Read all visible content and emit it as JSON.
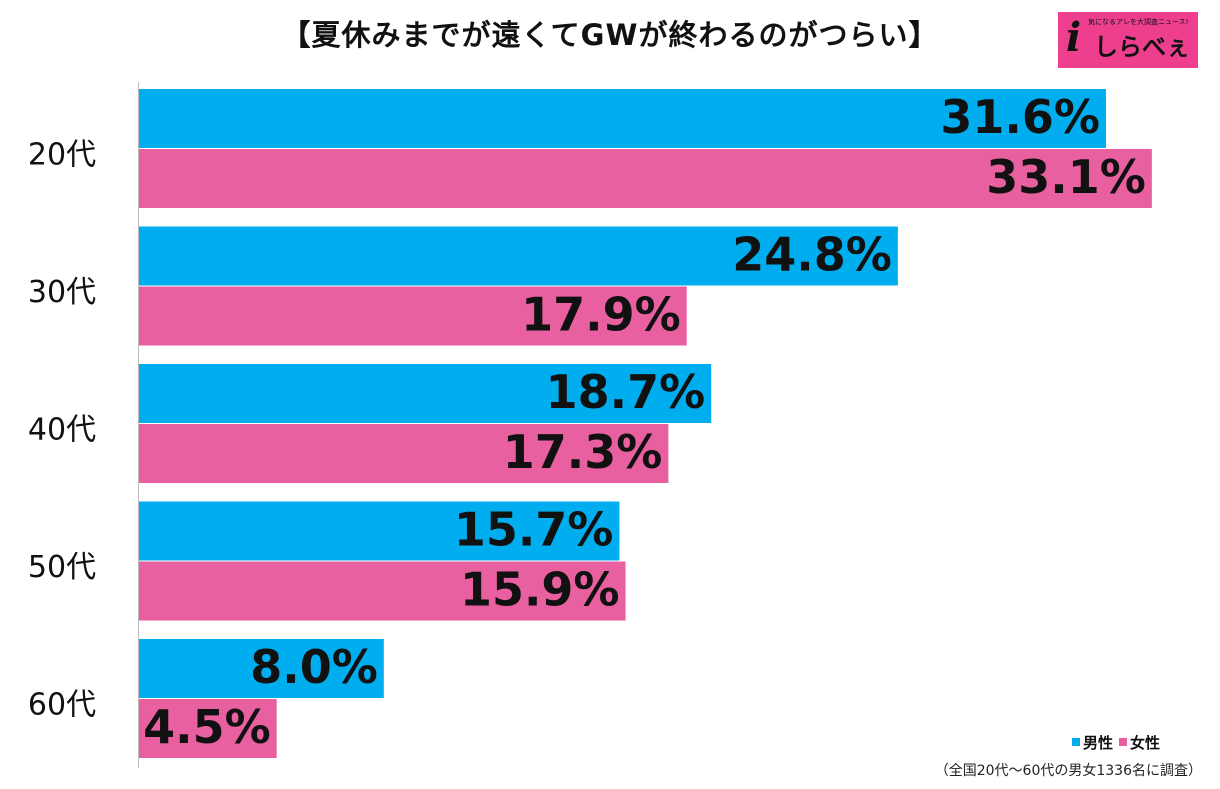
{
  "title": "【夏休みまでが遠くてGWが終わるのがつらい】",
  "logo": {
    "tagline": "気になるアレを大調査ニュース!",
    "mark": "i",
    "text": "しらべぇ"
  },
  "note": "（全国20代～60代の男女1336名に調査）",
  "colors": {
    "male": "#00aeef",
    "female": "#e8609f",
    "axis": "#bbbbbb"
  },
  "chart_data": {
    "type": "bar",
    "orientation": "horizontal",
    "categories": [
      "20代",
      "30代",
      "40代",
      "50代",
      "60代"
    ],
    "series": [
      {
        "name": "男性",
        "values": [
          31.6,
          24.8,
          18.7,
          15.7,
          8.0
        ],
        "labels": [
          "31.6%",
          "24.8%",
          "18.7%",
          "15.7%",
          "8.0%"
        ]
      },
      {
        "name": "女性",
        "values": [
          33.1,
          17.9,
          17.3,
          15.9,
          4.5
        ],
        "labels": [
          "33.1%",
          "17.9%",
          "17.3%",
          "15.9%",
          "4.5%"
        ]
      }
    ],
    "legend_position": "bottom-right",
    "grid": false
  }
}
